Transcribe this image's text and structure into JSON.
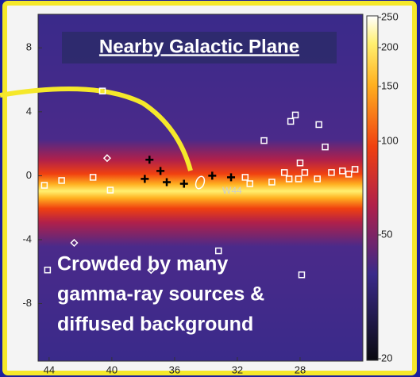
{
  "chart_data": {
    "type": "scatter",
    "title": "Nearby Galactic Plane",
    "annotation_lines": [
      "Crowded by many",
      "gamma-ray sources &",
      "diffused background"
    ],
    "source_label": "W44",
    "xlim": [
      44.7,
      24.0
    ],
    "xticks": [
      44,
      40,
      36,
      32,
      28
    ],
    "ylim": [
      -11.6,
      10.1
    ],
    "yticks": [
      8,
      4,
      0,
      -4,
      -8
    ],
    "colorbar": {
      "clim": [
        20,
        250
      ],
      "ticks": [
        250,
        200,
        150,
        100,
        50,
        20
      ],
      "log": true
    },
    "series": [
      {
        "marker": "square",
        "color": "#ffffff",
        "x": [
          44.3,
          43.2,
          41.2,
          40.1,
          40.6,
          31.5,
          31.2,
          30.3,
          29.8,
          29.0,
          28.7,
          28.1,
          28.6,
          28.3,
          28.0,
          27.7,
          26.9,
          26.8,
          26.4,
          26.0,
          25.3,
          24.9,
          24.5,
          44.1,
          33.2,
          27.9
        ],
        "values": [
          -0.6,
          -0.3,
          -0.1,
          -0.9,
          5.3,
          -0.1,
          -0.5,
          2.2,
          -0.4,
          0.2,
          -0.2,
          -0.2,
          3.4,
          3.8,
          0.8,
          0.2,
          -0.2,
          3.2,
          1.8,
          0.2,
          0.3,
          0.1,
          0.4,
          -5.9,
          -4.7,
          -6.2
        ]
      },
      {
        "marker": "cross",
        "color": "#000000",
        "x": [
          37.6,
          37.9,
          36.9,
          36.5,
          35.4,
          33.6,
          32.4
        ],
        "values": [
          1.0,
          -0.2,
          0.3,
          -0.4,
          -0.5,
          0.0,
          -0.1
        ]
      },
      {
        "marker": "diamond",
        "color": "#ffffff",
        "x": [
          40.3,
          42.4,
          37.5
        ],
        "values": [
          1.1,
          -4.2,
          -5.9
        ]
      }
    ]
  }
}
